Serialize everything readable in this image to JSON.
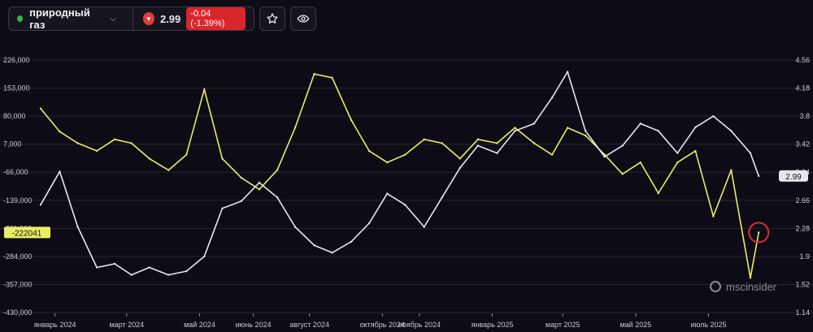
{
  "header": {
    "asset_name": "природный газ",
    "price": "2.99",
    "change": "-0.04 (-1.39%)",
    "status_dot_color": "#2fb84a",
    "star_icon": "star-icon",
    "eye_icon": "eye-icon"
  },
  "chart_data": {
    "type": "line",
    "left_axis_ticks": [
      "226,000",
      "153,000",
      "80,000",
      "7,000",
      "-66,000",
      "-139,000",
      "-211,000",
      "-284,000",
      "-357,000",
      "-430,000"
    ],
    "right_axis_ticks": [
      "4.56",
      "4.18",
      "3.8",
      "3.42",
      "3.04",
      "2.66",
      "2.28",
      "1.9",
      "1.52",
      "1.14"
    ],
    "left_ylim": [
      -430000,
      226000
    ],
    "right_ylim": [
      1.14,
      4.56
    ],
    "x_labels": [
      "январь 2024",
      "март 2024",
      "май 2024",
      "июнь 2024",
      "август 2024",
      "октябрь 2024",
      "ноябрь 2024",
      "январь 2025",
      "март 2025",
      "май 2025",
      "июль 2025"
    ],
    "x_label_dates": [
      "2024-01-01",
      "2024-03-01",
      "2024-05-01",
      "2024-06-15",
      "2024-08-01",
      "2024-10-01",
      "2024-11-01",
      "2025-01-01",
      "2025-03-01",
      "2025-05-01",
      "2025-07-01"
    ],
    "x_range": [
      "2023-12-20",
      "2025-08-20"
    ],
    "last_value_label_price": "2.99",
    "last_value_label_positioning": "-222041",
    "grid": "horizontal",
    "series": [
      {
        "color": "#e8ed63",
        "axis": "left",
        "x": [
          "2023-12-20",
          "2024-01-05",
          "2024-01-20",
          "2024-02-05",
          "2024-02-20",
          "2024-03-05",
          "2024-03-20",
          "2024-04-05",
          "2024-04-20",
          "2024-05-05",
          "2024-05-20",
          "2024-06-05",
          "2024-06-20",
          "2024-07-05",
          "2024-07-20",
          "2024-08-05",
          "2024-08-20",
          "2024-09-05",
          "2024-09-20",
          "2024-10-05",
          "2024-10-20",
          "2024-11-05",
          "2024-11-20",
          "2024-12-05",
          "2024-12-20",
          "2025-01-05",
          "2025-01-20",
          "2025-02-05",
          "2025-02-20",
          "2025-03-05",
          "2025-03-20",
          "2025-04-05",
          "2025-04-20",
          "2025-05-05",
          "2025-05-20",
          "2025-06-05",
          "2025-06-20",
          "2025-07-05",
          "2025-07-20",
          "2025-08-05",
          "2025-08-12"
        ],
        "values": [
          100000,
          40000,
          10000,
          -10000,
          20000,
          10000,
          -30000,
          -60000,
          -20000,
          150000,
          -30000,
          -80000,
          -110000,
          -60000,
          50000,
          190000,
          180000,
          70000,
          -10000,
          -40000,
          -20000,
          20000,
          10000,
          -30000,
          20000,
          10000,
          50000,
          10000,
          -20000,
          50000,
          30000,
          -20000,
          -70000,
          -40000,
          -120000,
          -40000,
          -10000,
          -180000,
          -60000,
          -340000,
          -222041
        ]
      },
      {
        "color": "#e6e6ee",
        "axis": "right",
        "x": [
          "2023-12-20",
          "2024-01-05",
          "2024-01-20",
          "2024-02-05",
          "2024-02-20",
          "2024-03-05",
          "2024-03-20",
          "2024-04-05",
          "2024-04-20",
          "2024-05-05",
          "2024-05-20",
          "2024-06-05",
          "2024-06-20",
          "2024-07-05",
          "2024-07-20",
          "2024-08-05",
          "2024-08-20",
          "2024-09-05",
          "2024-09-20",
          "2024-10-05",
          "2024-10-20",
          "2024-11-05",
          "2024-11-20",
          "2024-12-05",
          "2024-12-20",
          "2025-01-05",
          "2025-01-20",
          "2025-02-05",
          "2025-02-20",
          "2025-03-05",
          "2025-03-20",
          "2025-04-05",
          "2025-04-20",
          "2025-05-05",
          "2025-05-20",
          "2025-06-05",
          "2025-06-20",
          "2025-07-05",
          "2025-07-20",
          "2025-08-05",
          "2025-08-12"
        ],
        "values": [
          2.6,
          3.05,
          2.3,
          1.75,
          1.8,
          1.65,
          1.75,
          1.65,
          1.7,
          1.9,
          2.55,
          2.65,
          2.9,
          2.7,
          2.3,
          2.05,
          1.95,
          2.1,
          2.35,
          2.75,
          2.6,
          2.3,
          2.7,
          3.1,
          3.4,
          3.3,
          3.6,
          3.7,
          4.05,
          4.4,
          3.6,
          3.25,
          3.4,
          3.7,
          3.6,
          3.3,
          3.65,
          3.8,
          3.6,
          3.3,
          2.99
        ]
      }
    ],
    "watermark": "mscinsider"
  }
}
